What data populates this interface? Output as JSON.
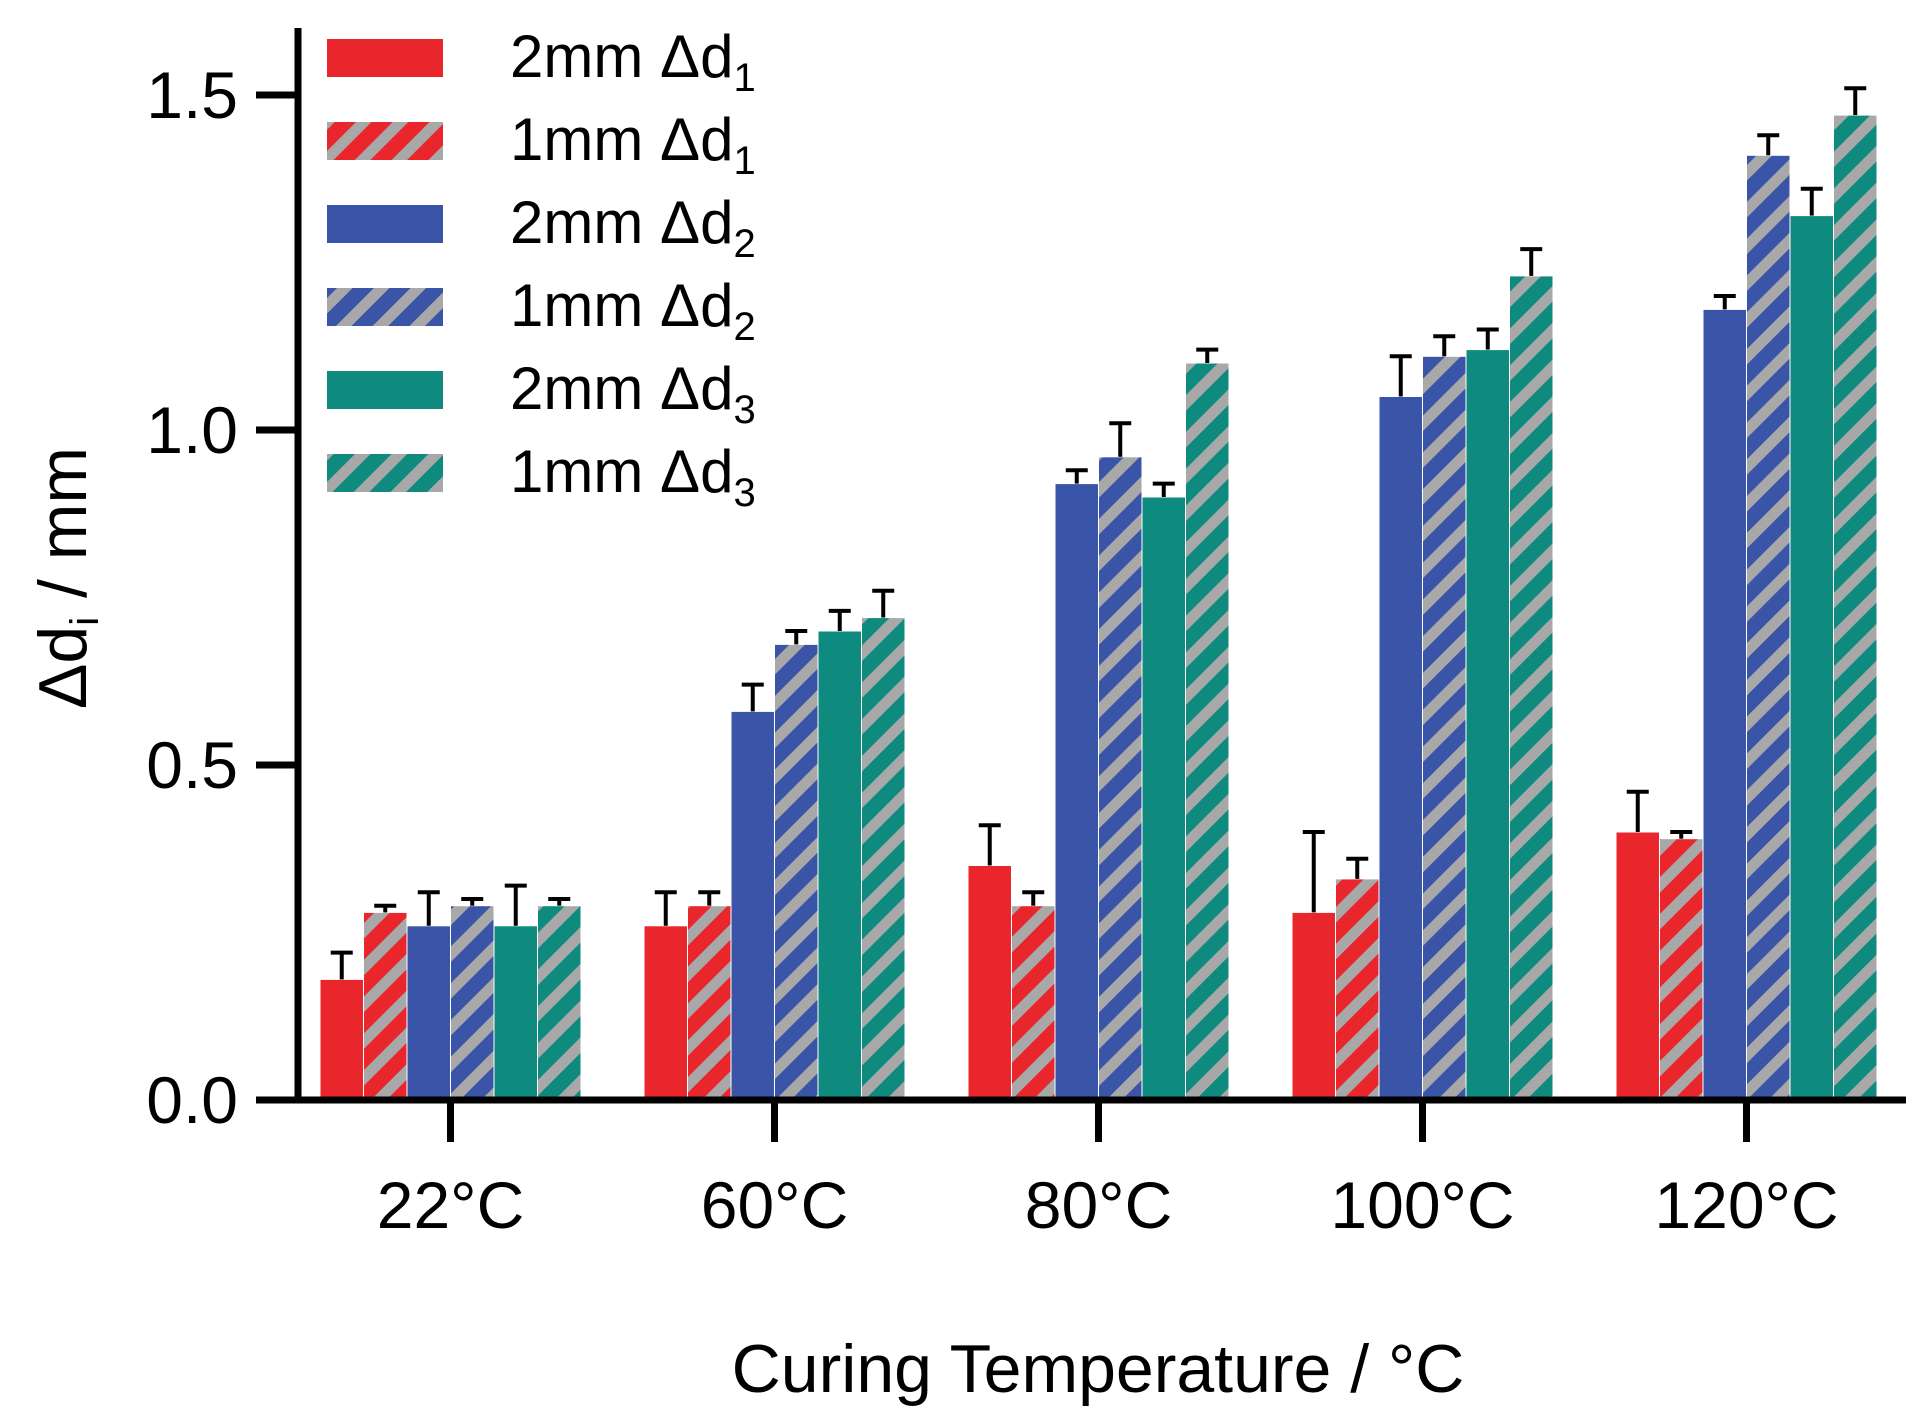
{
  "chart_data": {
    "type": "bar",
    "xlabel": "Curing Temperature / °C",
    "ylabel": "Δd",
    "ylabel_sub": "i",
    "ylabel_unit": " / mm",
    "ylim": [
      0,
      1.5
    ],
    "y_ticks": [
      "0.0",
      "0.5",
      "1.0",
      "1.5"
    ],
    "grid": false,
    "legend_position": "top-left",
    "categories": [
      "22°C",
      "60°C",
      "80°C",
      "100°C",
      "120°C"
    ],
    "series": [
      {
        "name": "2mm Δd",
        "sub": "1",
        "color": "#e8262c",
        "pattern": "solid",
        "values": [
          0.18,
          0.26,
          0.35,
          0.28,
          0.4
        ],
        "errors": [
          0.04,
          0.05,
          0.06,
          0.12,
          0.06
        ]
      },
      {
        "name": "1mm Δd",
        "sub": "1",
        "color": "#e8262c",
        "pattern": "hatched",
        "values": [
          0.28,
          0.29,
          0.29,
          0.33,
          0.39
        ],
        "errors": [
          0.01,
          0.02,
          0.02,
          0.03,
          0.01
        ]
      },
      {
        "name": "2mm Δd",
        "sub": "2",
        "color": "#3a55a8",
        "pattern": "solid",
        "values": [
          0.26,
          0.58,
          0.92,
          1.05,
          1.18
        ],
        "errors": [
          0.05,
          0.04,
          0.02,
          0.06,
          0.02
        ]
      },
      {
        "name": "1mm Δd",
        "sub": "2",
        "color": "#3a55a8",
        "pattern": "hatched",
        "values": [
          0.29,
          0.68,
          0.96,
          1.11,
          1.41
        ],
        "errors": [
          0.01,
          0.02,
          0.05,
          0.03,
          0.03
        ]
      },
      {
        "name": "2mm Δd",
        "sub": "3",
        "color": "#0f8a7f",
        "pattern": "solid",
        "values": [
          0.26,
          0.7,
          0.9,
          1.12,
          1.32
        ],
        "errors": [
          0.06,
          0.03,
          0.02,
          0.03,
          0.04
        ]
      },
      {
        "name": "1mm Δd",
        "sub": "3",
        "color": "#0f8a7f",
        "pattern": "hatched",
        "values": [
          0.29,
          0.72,
          1.1,
          1.23,
          1.47
        ],
        "errors": [
          0.01,
          0.04,
          0.02,
          0.04,
          0.04
        ]
      }
    ]
  },
  "colors": {
    "red": "#e8262c",
    "blue": "#3a55a8",
    "teal": "#0f8a7f",
    "hatch": "#a8a8a8",
    "axis": "#000000"
  }
}
